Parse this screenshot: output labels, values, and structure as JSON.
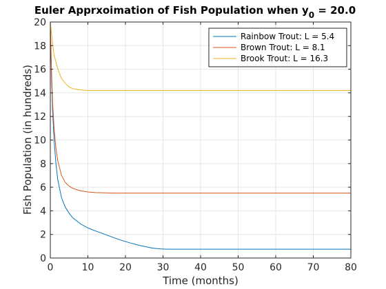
{
  "chart_data": {
    "type": "line",
    "title": {
      "main": "Euler Apprxoimation of Fish Population when y",
      "subscript": "0",
      "suffix": " = 20.0"
    },
    "xlabel": "Time (months)",
    "ylabel": "Fish Population (in hundreds)",
    "xlim": [
      0,
      80
    ],
    "ylim": [
      0,
      20
    ],
    "xticks": [
      0,
      10,
      20,
      30,
      40,
      50,
      60,
      70,
      80
    ],
    "yticks": [
      0,
      2,
      4,
      6,
      8,
      10,
      12,
      14,
      16,
      18,
      20
    ],
    "grid": true,
    "legend_position": "top-right",
    "series": [
      {
        "name": "Rainbow Trout: L = 5.4",
        "color": "#0072BD",
        "x": [
          0,
          0.3,
          0.6,
          1,
          1.5,
          2,
          3,
          4,
          5,
          6,
          8,
          10,
          12,
          15,
          18,
          21,
          24,
          27,
          29,
          31,
          35,
          40,
          50,
          60,
          70,
          80
        ],
        "y": [
          20,
          15.5,
          12.5,
          10.0,
          8.0,
          6.6,
          5.1,
          4.3,
          3.8,
          3.4,
          2.9,
          2.55,
          2.3,
          1.95,
          1.6,
          1.3,
          1.05,
          0.85,
          0.78,
          0.75,
          0.75,
          0.75,
          0.75,
          0.75,
          0.75,
          0.75
        ]
      },
      {
        "name": "Brown Trout: L = 8.1",
        "color": "#D95319",
        "x": [
          0,
          0.3,
          0.6,
          1,
          1.5,
          2,
          3,
          4,
          5,
          6,
          8,
          10,
          12,
          15,
          18,
          22,
          30,
          40,
          50,
          60,
          70,
          80
        ],
        "y": [
          20,
          16.0,
          13.2,
          11.0,
          9.3,
          8.2,
          7.0,
          6.4,
          6.1,
          5.9,
          5.7,
          5.6,
          5.55,
          5.52,
          5.5,
          5.5,
          5.5,
          5.5,
          5.5,
          5.5,
          5.5,
          5.5
        ]
      },
      {
        "name": "Brook Trout: L = 16.3",
        "color": "#EDB120",
        "x": [
          0,
          0.5,
          1,
          2,
          3,
          4,
          5,
          6,
          8,
          10,
          15,
          20,
          30,
          40,
          50,
          60,
          70,
          80
        ],
        "y": [
          20,
          18.5,
          17.2,
          16.0,
          15.2,
          14.8,
          14.5,
          14.35,
          14.25,
          14.2,
          14.2,
          14.2,
          14.2,
          14.2,
          14.2,
          14.2,
          14.2,
          14.2
        ]
      }
    ]
  }
}
